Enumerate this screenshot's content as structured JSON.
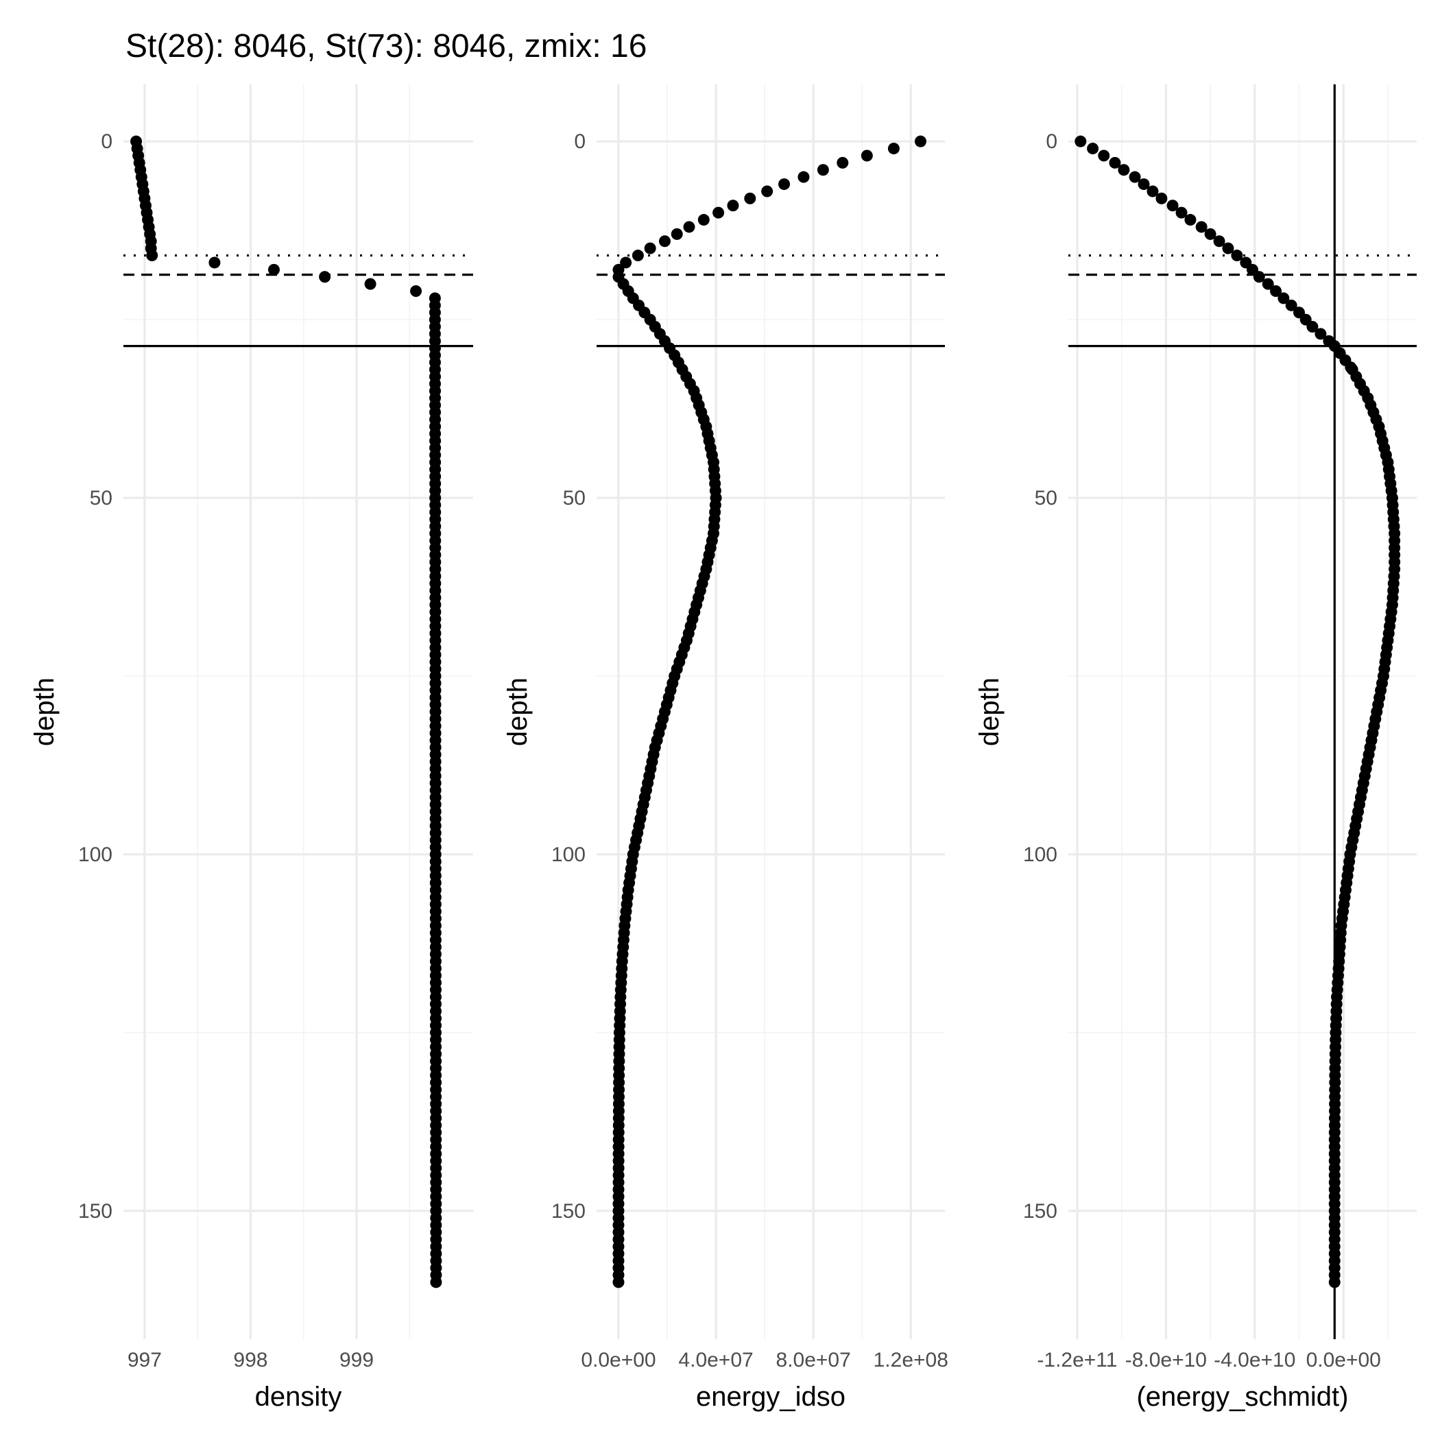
{
  "title": "St(28): 8046, St(73): 8046, zmix: 16",
  "colors": {
    "points": "#000000",
    "grid": "#ebebeb",
    "ticks": "#4d4d4d"
  },
  "chart_data": [
    {
      "type": "scatter",
      "xlabel": "density",
      "ylabel": "depth",
      "xlim": [
        996.8,
        1000.1
      ],
      "ylim": [
        -8,
        168
      ],
      "y_reversed": true,
      "grid": true,
      "x_ticks": [
        997,
        998,
        999
      ],
      "x_tick_labels": [
        "997",
        "998",
        "999"
      ],
      "y_ticks": [
        0,
        50,
        100,
        150
      ],
      "y_tick_labels": [
        "0",
        "50",
        "100",
        "150"
      ],
      "hlines": [
        {
          "depth": 16,
          "style": "dotted"
        },
        {
          "depth": 18.7,
          "style": "dashed"
        },
        {
          "depth": 28.7,
          "style": "solid"
        }
      ],
      "vlines": [],
      "points": [
        {
          "depth": 0,
          "value": 996.92
        },
        {
          "depth": 1,
          "value": 996.93
        },
        {
          "depth": 2,
          "value": 996.94
        },
        {
          "depth": 3,
          "value": 996.95
        },
        {
          "depth": 4,
          "value": 996.96
        },
        {
          "depth": 5,
          "value": 996.97
        },
        {
          "depth": 6,
          "value": 996.98
        },
        {
          "depth": 7,
          "value": 996.99
        },
        {
          "depth": 8,
          "value": 997.0
        },
        {
          "depth": 9,
          "value": 997.01
        },
        {
          "depth": 10,
          "value": 997.02
        },
        {
          "depth": 11,
          "value": 997.03
        },
        {
          "depth": 12,
          "value": 997.04
        },
        {
          "depth": 13,
          "value": 997.05
        },
        {
          "depth": 14,
          "value": 997.06
        },
        {
          "depth": 15,
          "value": 997.06
        },
        {
          "depth": 16,
          "value": 997.07
        },
        {
          "depth": 17,
          "value": 997.66
        },
        {
          "depth": 18,
          "value": 998.22
        },
        {
          "depth": 19,
          "value": 998.7
        },
        {
          "depth": 20,
          "value": 999.13
        },
        {
          "depth": 21,
          "value": 999.56
        },
        {
          "depth": 22,
          "value": 999.74
        },
        {
          "depth": 160,
          "value": 999.75
        }
      ]
    },
    {
      "type": "scatter",
      "xlabel": "energy_idso",
      "ylabel": "depth",
      "xlim": [
        -9000000.0,
        134000000.0
      ],
      "ylim": [
        -8,
        168
      ],
      "y_reversed": true,
      "grid": true,
      "x_ticks": [
        0,
        40000000.0,
        80000000.0,
        120000000.0
      ],
      "x_tick_labels": [
        "0.0e+00",
        "4.0e+07",
        "8.0e+07",
        "1.2e+08"
      ],
      "y_ticks": [
        0,
        50,
        100,
        150
      ],
      "y_tick_labels": [
        "0",
        "50",
        "100",
        "150"
      ],
      "hlines": [
        {
          "depth": 16,
          "style": "dotted"
        },
        {
          "depth": 18.7,
          "style": "dashed"
        },
        {
          "depth": 28.7,
          "style": "solid"
        }
      ],
      "vlines": [],
      "points": [
        {
          "depth": 0,
          "value": 124000000.0
        },
        {
          "depth": 1,
          "value": 113000000.0
        },
        {
          "depth": 2,
          "value": 102000000.0
        },
        {
          "depth": 3,
          "value": 92000000.0
        },
        {
          "depth": 4,
          "value": 84000000.0
        },
        {
          "depth": 5,
          "value": 76000000.0
        },
        {
          "depth": 6,
          "value": 68000000.0
        },
        {
          "depth": 7,
          "value": 61000000.0
        },
        {
          "depth": 8,
          "value": 54000000.0
        },
        {
          "depth": 9,
          "value": 47000000.0
        },
        {
          "depth": 10,
          "value": 41000000.0
        },
        {
          "depth": 11,
          "value": 35000000.0
        },
        {
          "depth": 12,
          "value": 29000000.0
        },
        {
          "depth": 13,
          "value": 24000000.0
        },
        {
          "depth": 14,
          "value": 19000000.0
        },
        {
          "depth": 15,
          "value": 13000000.0
        },
        {
          "depth": 16,
          "value": 8000000.0
        },
        {
          "depth": 17,
          "value": 3000000.0
        },
        {
          "depth": 18,
          "value": 0
        },
        {
          "depth": 19,
          "value": 0
        },
        {
          "depth": 20,
          "value": 2000000.0
        },
        {
          "depth": 22,
          "value": 6000000.0
        },
        {
          "depth": 25,
          "value": 13000000.0
        },
        {
          "depth": 30,
          "value": 23000000.0
        },
        {
          "depth": 35,
          "value": 31000000.0
        },
        {
          "depth": 40,
          "value": 36000000.0
        },
        {
          "depth": 45,
          "value": 39000000.0
        },
        {
          "depth": 50,
          "value": 40000000.0
        },
        {
          "depth": 55,
          "value": 39000000.0
        },
        {
          "depth": 60,
          "value": 36000000.0
        },
        {
          "depth": 65,
          "value": 32000000.0
        },
        {
          "depth": 70,
          "value": 28000000.0
        },
        {
          "depth": 75,
          "value": 23000000.0
        },
        {
          "depth": 80,
          "value": 19000000.0
        },
        {
          "depth": 85,
          "value": 15000000.0
        },
        {
          "depth": 90,
          "value": 12000000.0
        },
        {
          "depth": 95,
          "value": 9000000.0
        },
        {
          "depth": 100,
          "value": 6000000.0
        },
        {
          "depth": 105,
          "value": 4000000.0
        },
        {
          "depth": 110,
          "value": 2500000.0
        },
        {
          "depth": 115,
          "value": 1500000.0
        },
        {
          "depth": 120,
          "value": 800000.0
        },
        {
          "depth": 125,
          "value": 400000.0
        },
        {
          "depth": 130,
          "value": 200000.0
        },
        {
          "depth": 140,
          "value": 50000.0
        },
        {
          "depth": 150,
          "value": 0
        },
        {
          "depth": 160,
          "value": 0
        }
      ]
    },
    {
      "type": "scatter",
      "xlabel": "(energy_schmidt)",
      "ylabel": "depth",
      "xlim": [
        -124000000000.0,
        33000000000.0
      ],
      "ylim": [
        -8,
        168
      ],
      "y_reversed": true,
      "grid": true,
      "x_ticks": [
        -120000000000.0,
        -80000000000.0,
        -40000000000.0,
        0
      ],
      "x_tick_labels": [
        "-1.2e+11",
        "-8.0e+10",
        "-4.0e+10",
        "0.0e+00"
      ],
      "y_ticks": [
        0,
        50,
        100,
        150
      ],
      "y_tick_labels": [
        "0",
        "50",
        "100",
        "150"
      ],
      "hlines": [
        {
          "depth": 16,
          "style": "dotted"
        },
        {
          "depth": 18.7,
          "style": "dashed"
        },
        {
          "depth": 28.7,
          "style": "solid"
        }
      ],
      "vlines": [
        {
          "value": -4000000000.0,
          "style": "solid"
        }
      ],
      "points": [
        {
          "depth": 0,
          "value": -118500000000.0
        },
        {
          "depth": 1,
          "value": -113000000000.0
        },
        {
          "depth": 2,
          "value": -108000000000.0
        },
        {
          "depth": 3,
          "value": -103000000000.0
        },
        {
          "depth": 4,
          "value": -99000000000.0
        },
        {
          "depth": 5,
          "value": -94000000000.0
        },
        {
          "depth": 6,
          "value": -90000000000.0
        },
        {
          "depth": 7,
          "value": -86000000000.0
        },
        {
          "depth": 8,
          "value": -82000000000.0
        },
        {
          "depth": 9,
          "value": -77000000000.0
        },
        {
          "depth": 10,
          "value": -73000000000.0
        },
        {
          "depth": 11,
          "value": -69000000000.0
        },
        {
          "depth": 12,
          "value": -64000000000.0
        },
        {
          "depth": 13,
          "value": -60000000000.0
        },
        {
          "depth": 14,
          "value": -56000000000.0
        },
        {
          "depth": 15,
          "value": -52000000000.0
        },
        {
          "depth": 16,
          "value": -48000000000.0
        },
        {
          "depth": 17,
          "value": -44000000000.0
        },
        {
          "depth": 18,
          "value": -41000000000.0
        },
        {
          "depth": 19,
          "value": -38000000000.0
        },
        {
          "depth": 20,
          "value": -34000000000.0
        },
        {
          "depth": 22,
          "value": -27000000000.0
        },
        {
          "depth": 24,
          "value": -20000000000.0
        },
        {
          "depth": 26,
          "value": -14000000000.0
        },
        {
          "depth": 28.7,
          "value": -4000000000.0
        },
        {
          "depth": 32,
          "value": 4000000000.0
        },
        {
          "depth": 36,
          "value": 11000000000.0
        },
        {
          "depth": 40,
          "value": 16000000000.0
        },
        {
          "depth": 45,
          "value": 20000000000.0
        },
        {
          "depth": 50,
          "value": 22000000000.0
        },
        {
          "depth": 55,
          "value": 23000000000.0
        },
        {
          "depth": 60,
          "value": 23000000000.0
        },
        {
          "depth": 65,
          "value": 22000000000.0
        },
        {
          "depth": 70,
          "value": 20000000000.0
        },
        {
          "depth": 75,
          "value": 18000000000.0
        },
        {
          "depth": 80,
          "value": 15000000000.0
        },
        {
          "depth": 85,
          "value": 12000000000.0
        },
        {
          "depth": 90,
          "value": 9000000000.0
        },
        {
          "depth": 95,
          "value": 6000000000.0
        },
        {
          "depth": 100,
          "value": 3000000000.0
        },
        {
          "depth": 105,
          "value": 1000000000.0
        },
        {
          "depth": 110,
          "value": -1000000000.0
        },
        {
          "depth": 115,
          "value": -2000000000.0
        },
        {
          "depth": 120,
          "value": -3000000000.0
        },
        {
          "depth": 125,
          "value": -3500000000.0
        },
        {
          "depth": 130,
          "value": -3800000000.0
        },
        {
          "depth": 140,
          "value": -4000000000.0
        },
        {
          "depth": 150,
          "value": -4000000000.0
        },
        {
          "depth": 160,
          "value": -4000000000.0
        }
      ]
    }
  ]
}
